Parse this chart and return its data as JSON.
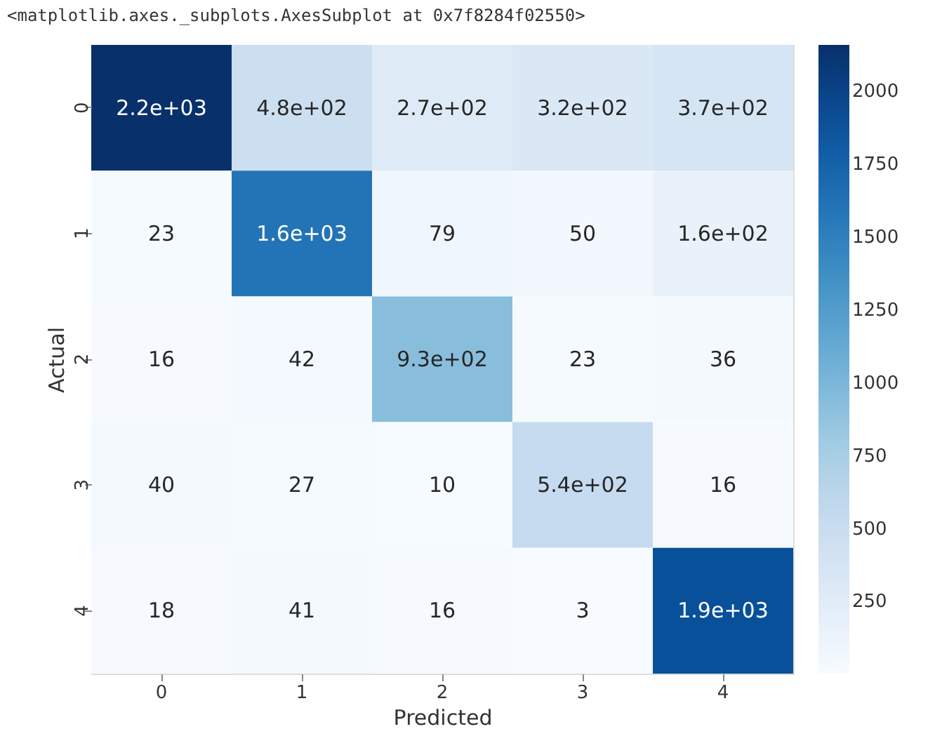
{
  "chart_data": {
    "type": "heatmap",
    "annotations": [
      "<matplotlib.axes._subplots.AxesSubplot at 0x7f8284f02550>"
    ],
    "xlabel": "Predicted",
    "ylabel": "Actual",
    "categories": [
      "0",
      "1",
      "2",
      "3",
      "4"
    ],
    "y_categories": [
      "0",
      "1",
      "2",
      "3",
      "4"
    ],
    "cells": [
      [
        2160,
        480,
        270,
        320,
        370
      ],
      [
        23,
        1600,
        79,
        50,
        160
      ],
      [
        16,
        42,
        930,
        23,
        36
      ],
      [
        40,
        27,
        10,
        540,
        16
      ],
      [
        18,
        41,
        16,
        3,
        1900
      ]
    ],
    "cell_labels": [
      [
        "2.2e+03",
        "4.8e+02",
        "2.7e+02",
        "3.2e+02",
        "3.7e+02"
      ],
      [
        "23",
        "1.6e+03",
        "79",
        "50",
        "1.6e+02"
      ],
      [
        "16",
        "42",
        "9.3e+02",
        "23",
        "36"
      ],
      [
        "40",
        "27",
        "10",
        "5.4e+02",
        "16"
      ],
      [
        "18",
        "41",
        "16",
        "3",
        "1.9e+03"
      ]
    ],
    "clim": [
      3,
      2160
    ],
    "cticks": [
      250,
      500,
      750,
      1000,
      1250,
      1500,
      1750,
      2000
    ]
  }
}
